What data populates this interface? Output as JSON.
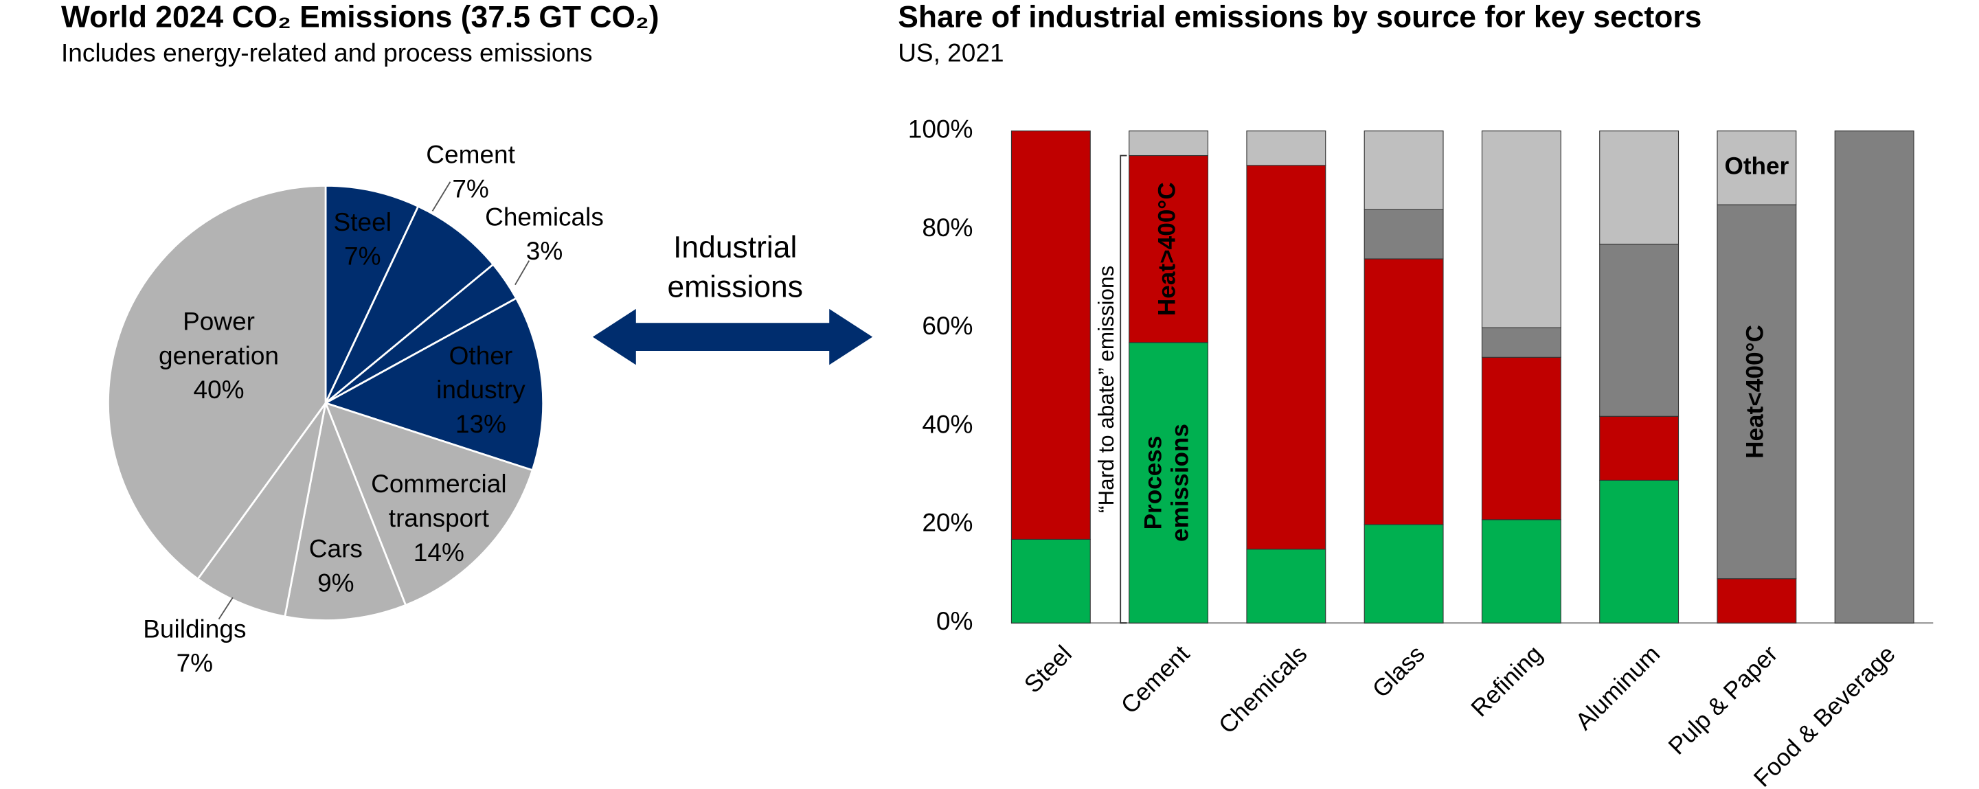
{
  "chart_data": [
    {
      "type": "pie",
      "title": "World 2024 CO₂ Emissions (37.5 GT CO₂)",
      "subtitle": "Includes energy-related and process emissions",
      "categories": [
        "Steel",
        "Cement",
        "Chemicals",
        "Other industry",
        "Commercial transport",
        "Cars",
        "Buildings",
        "Power generation"
      ],
      "values": [
        7,
        7,
        3,
        13,
        14,
        9,
        7,
        40
      ],
      "value_labels": [
        "7%",
        "7%",
        "3%",
        "13%",
        "14%",
        "9%",
        "7%",
        "40%"
      ],
      "colors": [
        "#002d6e",
        "#002d6e",
        "#002d6e",
        "#002d6e",
        "#b3b3b3",
        "#b3b3b3",
        "#b3b3b3",
        "#b3b3b3"
      ],
      "annotation": "Industrial emissions"
    },
    {
      "type": "stacked-bar",
      "title": "Share of industrial emissions by source for key sectors",
      "subtitle": "US, 2021",
      "categories": [
        "Steel",
        "Cement",
        "Chemicals",
        "Glass",
        "Refining",
        "Aluminum",
        "Pulp & Paper",
        "Food & Beverage"
      ],
      "series": [
        {
          "name": "Process emissions",
          "color": "#00b050",
          "values": [
            17,
            57,
            15,
            20,
            21,
            29,
            0,
            0
          ]
        },
        {
          "name": "Heat>400°C",
          "color": "#c00000",
          "values": [
            83,
            38,
            78,
            54,
            33,
            13,
            9,
            0
          ]
        },
        {
          "name": "Heat<400°C",
          "color": "#808080",
          "values": [
            0,
            0,
            0,
            10,
            6,
            35,
            76,
            100
          ]
        },
        {
          "name": "Other",
          "color": "#bfbfbf",
          "values": [
            0,
            5,
            7,
            16,
            40,
            23,
            15,
            0
          ]
        }
      ],
      "ylim": [
        0,
        100
      ],
      "yticks": [
        {
          "value": 0,
          "label": "0%"
        },
        {
          "value": 20,
          "label": "20%"
        },
        {
          "value": 40,
          "label": "40%"
        },
        {
          "value": 60,
          "label": "60%"
        },
        {
          "value": 80,
          "label": "80%"
        },
        {
          "value": 100,
          "label": "100%"
        }
      ],
      "annotation": "“Hard to abate” emissions"
    }
  ]
}
